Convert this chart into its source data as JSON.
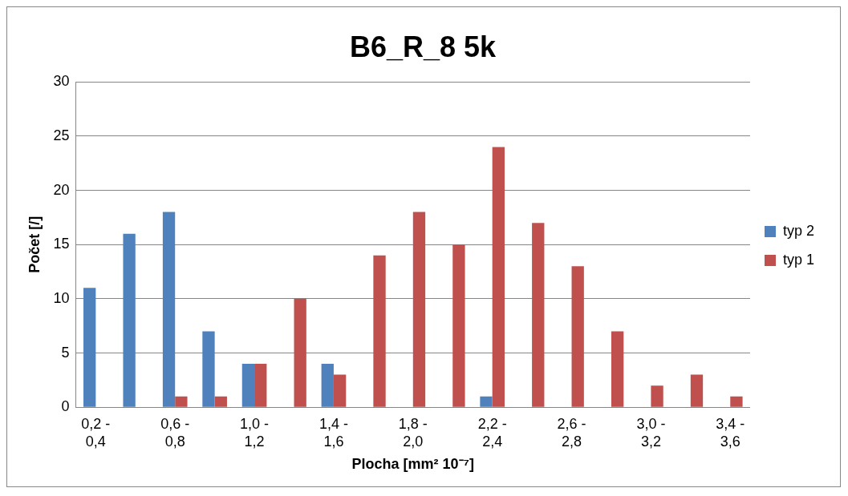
{
  "chart_data": {
    "type": "bar",
    "title": "B6_R_8 5k",
    "xlabel": "Plocha [mm² 10⁻⁷]",
    "ylabel": "Počet [/]",
    "categories": [
      "0,2 - 0,4",
      null,
      "0,6 - 0,8",
      null,
      "1,0 - 1,2",
      null,
      "1,4 - 1,6",
      null,
      "1,8 - 2,0",
      null,
      "2,2 - 2,4",
      null,
      "2,6 - 2,8",
      null,
      "3,0 - 3,2",
      null,
      "3,4 - 3,6"
    ],
    "series": [
      {
        "name": "typ 2",
        "color": "#4f81bd",
        "values": [
          11,
          16,
          18,
          7,
          4,
          0,
          4,
          0,
          0,
          0,
          1,
          0,
          0,
          0,
          0,
          0,
          0
        ]
      },
      {
        "name": "typ 1",
        "color": "#c0504d",
        "values": [
          0,
          0,
          1,
          1,
          4,
          10,
          3,
          14,
          18,
          15,
          24,
          17,
          13,
          7,
          2,
          3,
          1
        ]
      }
    ],
    "ylim": [
      0,
      30
    ],
    "yticks": [
      0,
      5,
      10,
      15,
      20,
      25,
      30
    ],
    "grid": "y",
    "legend": "right"
  }
}
